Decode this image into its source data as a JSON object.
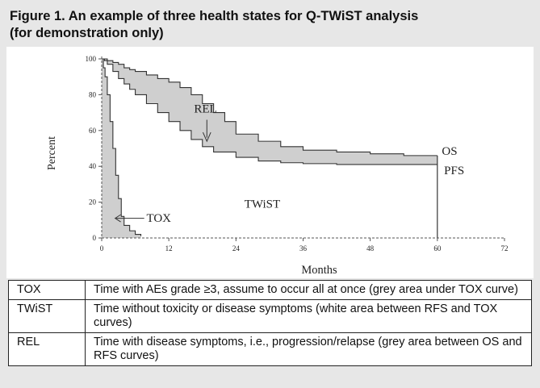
{
  "figure": {
    "title_line1": "Figure 1. An example of three health states for Q-TWiST analysis",
    "title_line2": "(for demonstration only)"
  },
  "chart_data": {
    "type": "line",
    "xlabel": "Months",
    "ylabel": "Percent",
    "xlim": [
      0,
      72
    ],
    "ylim": [
      0,
      100
    ],
    "xticks": [
      0,
      12,
      24,
      36,
      48,
      60,
      72
    ],
    "yticks": [
      0,
      20,
      40,
      60,
      80,
      100
    ],
    "grid": false,
    "colors": {
      "shade": "#cfcfcf",
      "line": "#333333",
      "axis": "#555555"
    },
    "series": [
      {
        "name": "OS",
        "x": [
          0,
          0.8,
          1,
          2,
          3,
          4,
          5,
          6,
          8,
          10,
          12,
          14,
          16,
          18,
          20,
          22,
          24,
          28,
          32,
          36,
          42,
          48,
          54,
          60
        ],
        "y": [
          100,
          100,
          99,
          98,
          97,
          95,
          94,
          93,
          91,
          89,
          87,
          84,
          80,
          75,
          70,
          65,
          58,
          54,
          51,
          49,
          48,
          47,
          46,
          46
        ]
      },
      {
        "name": "PFS",
        "x": [
          0,
          0.5,
          1,
          2,
          3,
          4,
          5,
          6,
          8,
          10,
          12,
          14,
          16,
          18,
          20,
          24,
          28,
          32,
          36,
          42,
          48,
          54,
          60
        ],
        "y": [
          100,
          99,
          97,
          93,
          89,
          86,
          83,
          80,
          75,
          70,
          65,
          60,
          55,
          51,
          48,
          45,
          43,
          42,
          41.5,
          41,
          41,
          41,
          41
        ]
      },
      {
        "name": "TOX",
        "x": [
          0,
          0.3,
          0.6,
          1,
          1.5,
          2,
          2.5,
          3,
          3.5,
          4,
          5,
          6,
          7
        ],
        "y": [
          100,
          95,
          90,
          80,
          65,
          50,
          35,
          22,
          12,
          7,
          4,
          2,
          1
        ]
      }
    ],
    "annotations": [
      "REL",
      "TWiST",
      "TOX",
      "OS",
      "PFS"
    ]
  },
  "legend_table": {
    "rows": [
      {
        "abbr": "TOX",
        "desc": "Time with AEs grade ≥3, assume to occur all at once (grey area under TOX curve)"
      },
      {
        "abbr": "TWiST",
        "desc": "Time without toxicity or disease symptoms (white area between RFS and TOX curves)"
      },
      {
        "abbr": "REL",
        "desc": "Time with disease symptoms, i.e., progression/relapse (grey area between OS and RFS curves)"
      }
    ]
  }
}
